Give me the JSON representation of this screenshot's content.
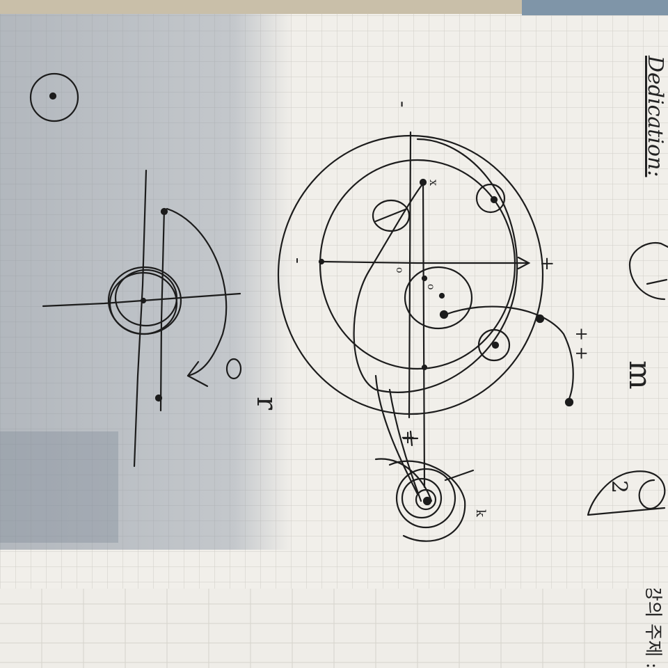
{
  "photo": {
    "paper_color": "#f1efea",
    "grid_color": "#c9c6c0",
    "ink_color": "#1c1c1c",
    "shadow_color": "#8c97a6"
  },
  "margin_header": {
    "text": "Dedication:"
  },
  "bottom_page": {
    "text": "강의 주제 :"
  },
  "sketch_marks": {
    "plus_pair": "+ +",
    "minus_top": "-",
    "minus_left": "-",
    "plus_right": "+",
    "plus_bottom": "+",
    "zero_a": "o",
    "zero_b": "o",
    "letter_x": "x",
    "letter_r": "2",
    "letter_m": "m",
    "letter_f": "r",
    "letter_k": "k"
  }
}
